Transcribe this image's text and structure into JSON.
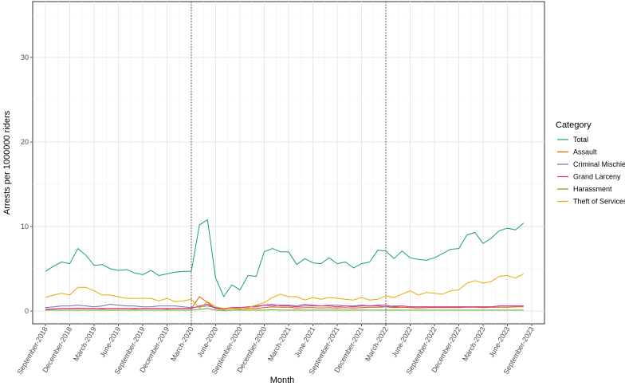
{
  "chart_data": {
    "type": "line",
    "xlabel": "Month",
    "ylabel": "Arrests per 1000000 riders",
    "ylim": [
      0,
      35.5
    ],
    "y_ticks": [
      0,
      10,
      20,
      30
    ],
    "y_tick_labels": [
      "0",
      "10",
      "20",
      "30"
    ],
    "x_start": "2018-09",
    "x_end": "2023-09",
    "x_ticks": [
      "2018-09",
      "2018-12",
      "2019-03",
      "2019-06",
      "2019-09",
      "2019-12",
      "2020-03",
      "2020-06",
      "2020-09",
      "2020-12",
      "2021-03",
      "2021-06",
      "2021-09",
      "2021-12",
      "2022-03",
      "2022-06",
      "2022-09",
      "2022-12",
      "2023-03",
      "2023-06",
      "2023-09"
    ],
    "x_tick_labels": [
      "September-2018",
      "December-2018",
      "March-2019",
      "June-2019",
      "September-2019",
      "December-2019",
      "March-2020",
      "June-2020",
      "September-2020",
      "December-2020",
      "March-2021",
      "June-2021",
      "September-2021",
      "December-2021",
      "March-2022",
      "June-2022",
      "September-2022",
      "December-2022",
      "March-2023",
      "June-2023",
      "September-2023"
    ],
    "reference_lines": [
      "2020-03",
      "2022-03"
    ],
    "grid": true,
    "legend": {
      "title": "Category",
      "position": "right"
    },
    "months": [
      "2018-09",
      "2018-10",
      "2018-11",
      "2018-12",
      "2019-01",
      "2019-02",
      "2019-03",
      "2019-04",
      "2019-05",
      "2019-06",
      "2019-07",
      "2019-08",
      "2019-09",
      "2019-10",
      "2019-11",
      "2019-12",
      "2020-01",
      "2020-02",
      "2020-03",
      "2020-04",
      "2020-05",
      "2020-06",
      "2020-07",
      "2020-08",
      "2020-09",
      "2020-10",
      "2020-11",
      "2020-12",
      "2021-01",
      "2021-02",
      "2021-03",
      "2021-04",
      "2021-05",
      "2021-06",
      "2021-07",
      "2021-08",
      "2021-09",
      "2021-10",
      "2021-11",
      "2021-12",
      "2022-01",
      "2022-02",
      "2022-03",
      "2022-04",
      "2022-05",
      "2022-06",
      "2022-07",
      "2022-08",
      "2022-09",
      "2022-10",
      "2022-11",
      "2022-12",
      "2023-01",
      "2023-02",
      "2023-03",
      "2023-04",
      "2023-05",
      "2023-06",
      "2023-07",
      "2023-08"
    ],
    "series": [
      {
        "name": "Total",
        "color": "#1b9e77",
        "values": [
          4.7,
          5.3,
          5.8,
          5.6,
          7.4,
          6.6,
          5.4,
          5.5,
          5.0,
          4.8,
          4.9,
          4.5,
          4.3,
          4.8,
          4.2,
          4.4,
          4.6,
          4.7,
          4.7,
          10.2,
          10.8,
          3.9,
          1.7,
          3.1,
          2.5,
          4.2,
          4.1,
          7.0,
          7.4,
          7.0,
          7.0,
          5.5,
          6.2,
          5.7,
          5.6,
          6.3,
          5.6,
          5.8,
          5.1,
          5.6,
          5.8,
          7.2,
          7.1,
          6.2,
          7.1,
          6.3,
          6.1,
          6.0,
          6.3,
          6.8,
          7.3,
          7.4,
          9.0,
          9.3,
          8.0,
          8.6,
          9.5,
          9.8,
          9.6,
          10.4
        ]
      },
      {
        "name": "Assault",
        "color": "#d95f02",
        "values": [
          0.2,
          0.25,
          0.3,
          0.3,
          0.35,
          0.3,
          0.3,
          0.25,
          0.3,
          0.3,
          0.3,
          0.25,
          0.3,
          0.3,
          0.3,
          0.25,
          0.3,
          0.3,
          0.3,
          1.7,
          1.0,
          0.3,
          0.2,
          0.3,
          0.25,
          0.3,
          0.3,
          0.4,
          0.5,
          0.45,
          0.45,
          0.35,
          0.4,
          0.4,
          0.35,
          0.4,
          0.35,
          0.4,
          0.35,
          0.4,
          0.45,
          0.45,
          0.5,
          0.4,
          0.45,
          0.4,
          0.35,
          0.4,
          0.4,
          0.4,
          0.4,
          0.4,
          0.45,
          0.45,
          0.4,
          0.45,
          0.45,
          0.45,
          0.5,
          0.5
        ]
      },
      {
        "name": "Criminal Mischief",
        "color": "#7570b3",
        "values": [
          0.4,
          0.5,
          0.6,
          0.6,
          0.7,
          0.6,
          0.5,
          0.6,
          0.8,
          0.7,
          0.6,
          0.6,
          0.5,
          0.5,
          0.6,
          0.6,
          0.6,
          0.5,
          0.4,
          0.5,
          0.6,
          0.4,
          0.3,
          0.4,
          0.4,
          0.5,
          0.6,
          0.7,
          0.6,
          0.7,
          0.7,
          0.6,
          0.8,
          0.7,
          0.6,
          0.7,
          0.7,
          0.6,
          0.6,
          0.7,
          0.6,
          0.6,
          0.5,
          0.6,
          0.6,
          0.5,
          0.5,
          0.5,
          0.5,
          0.5,
          0.5,
          0.5,
          0.5,
          0.5,
          0.5,
          0.5,
          0.6,
          0.6,
          0.6,
          0.6
        ]
      },
      {
        "name": "Grand Larceny",
        "color": "#e7298a",
        "values": [
          0.2,
          0.25,
          0.3,
          0.3,
          0.3,
          0.3,
          0.3,
          0.3,
          0.3,
          0.3,
          0.3,
          0.3,
          0.3,
          0.3,
          0.3,
          0.3,
          0.3,
          0.3,
          0.3,
          0.6,
          0.8,
          0.3,
          0.2,
          0.4,
          0.4,
          0.5,
          0.5,
          0.7,
          0.8,
          0.6,
          0.6,
          0.5,
          0.6,
          0.6,
          0.6,
          0.6,
          0.5,
          0.6,
          0.5,
          0.6,
          0.6,
          0.7,
          0.7,
          0.5,
          0.6,
          0.5,
          0.5,
          0.5,
          0.5,
          0.5,
          0.5,
          0.5,
          0.5,
          0.5,
          0.5,
          0.5,
          0.6,
          0.6,
          0.6,
          0.6
        ]
      },
      {
        "name": "Harassment",
        "color": "#66a61e",
        "values": [
          0.1,
          0.1,
          0.1,
          0.1,
          0.1,
          0.1,
          0.1,
          0.1,
          0.1,
          0.1,
          0.1,
          0.1,
          0.1,
          0.1,
          0.1,
          0.1,
          0.1,
          0.1,
          0.1,
          0.2,
          0.3,
          0.1,
          0.05,
          0.1,
          0.1,
          0.1,
          0.1,
          0.1,
          0.15,
          0.1,
          0.1,
          0.1,
          0.1,
          0.1,
          0.1,
          0.1,
          0.1,
          0.1,
          0.1,
          0.1,
          0.1,
          0.1,
          0.1,
          0.1,
          0.1,
          0.1,
          0.1,
          0.1,
          0.1,
          0.1,
          0.1,
          0.1,
          0.1,
          0.1,
          0.1,
          0.1,
          0.1,
          0.1,
          0.1,
          0.1
        ]
      },
      {
        "name": "Theft of Services",
        "color": "#e6ab02",
        "values": [
          1.6,
          1.9,
          2.1,
          1.9,
          2.8,
          2.8,
          2.4,
          1.9,
          1.9,
          1.7,
          1.5,
          1.5,
          1.5,
          1.5,
          1.2,
          1.5,
          1.1,
          1.2,
          1.4,
          0.3,
          1.1,
          0.5,
          0.3,
          0.3,
          0.2,
          0.4,
          0.7,
          1.0,
          1.6,
          2.0,
          1.7,
          1.7,
          1.3,
          1.6,
          1.4,
          1.6,
          1.5,
          1.4,
          1.3,
          1.6,
          1.3,
          1.4,
          1.8,
          1.6,
          2.0,
          2.4,
          1.9,
          2.2,
          2.1,
          2.0,
          2.4,
          2.5,
          3.3,
          3.6,
          3.3,
          3.5,
          4.1,
          4.2,
          3.9,
          4.4
        ]
      }
    ]
  }
}
